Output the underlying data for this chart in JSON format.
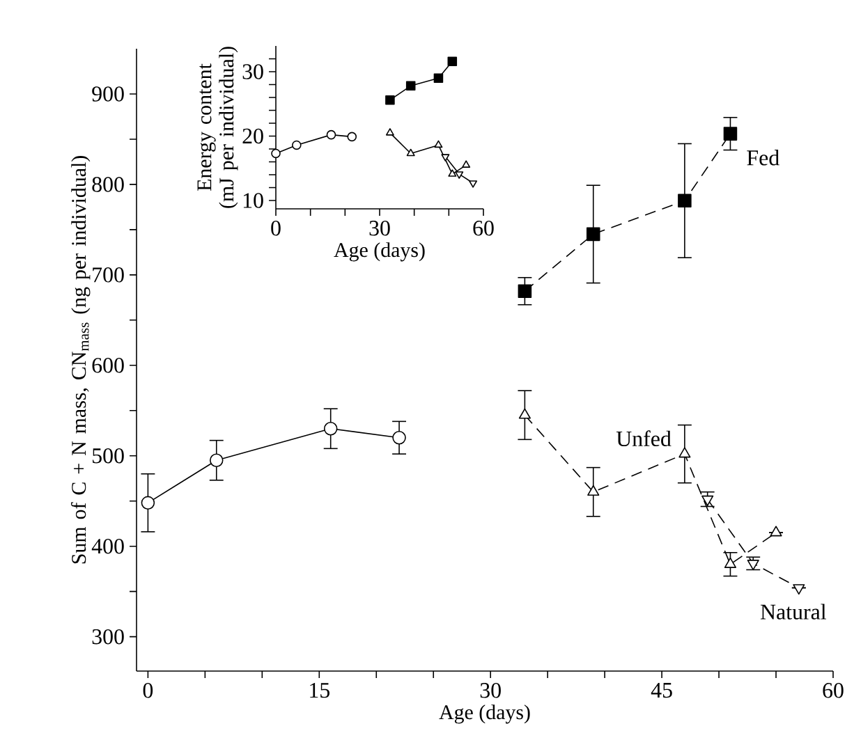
{
  "chart_data": [
    {
      "type": "line",
      "xlabel": "Age (days)",
      "ylabel": "Sum of C + N mass, CN$_{mass}$ (ng per individual)",
      "xlim": [
        -1,
        60
      ],
      "ylim": [
        262,
        950
      ],
      "xticks": [
        0,
        {
          "value": 5,
          "label": null
        },
        {
          "value": 10,
          "label": null
        },
        15,
        {
          "value": 20,
          "label": null
        },
        {
          "value": 25,
          "label": null
        },
        30,
        {
          "value": 35,
          "label": null
        },
        {
          "value": 40,
          "label": null
        },
        45,
        {
          "value": 50,
          "label": null
        },
        {
          "value": 55,
          "label": null
        },
        60
      ],
      "yticks": [
        300,
        {
          "value": 350,
          "label": null
        },
        400,
        {
          "value": 450,
          "label": null
        },
        500,
        {
          "value": 550,
          "label": null
        },
        600,
        {
          "value": 650,
          "label": null
        },
        700,
        {
          "value": 750,
          "label": null
        },
        800,
        {
          "value": 850,
          "label": null
        },
        900
      ],
      "grid": false,
      "series": [
        {
          "x": [
            0,
            6,
            16,
            22
          ],
          "values": [
            448,
            495,
            530,
            520
          ],
          "errors": [
            32,
            22,
            22,
            18
          ],
          "color": "#000000",
          "marker": "circle",
          "line_style": "solid"
        },
        {
          "name": "Fed",
          "x": [
            33,
            39,
            47,
            51
          ],
          "values": [
            682,
            745,
            782,
            856
          ],
          "errors": [
            15,
            54,
            63,
            18
          ],
          "color": "#000000",
          "marker": "square",
          "line_style": "dashed"
        },
        {
          "name": "Unfed",
          "x": [
            33,
            39,
            47,
            51,
            55
          ],
          "values": [
            545,
            460,
            502,
            380,
            415
          ],
          "errors": [
            27,
            27,
            32,
            13,
            null
          ],
          "color": "#000000",
          "marker": "triangle",
          "line_style": "dashed"
        },
        {
          "name": "Natural",
          "x": [
            49,
            53,
            57
          ],
          "values": [
            452,
            381,
            354
          ],
          "errors": [
            8,
            7,
            null
          ],
          "color": "#000000",
          "marker": "triangle down",
          "line_style": "dashed"
        }
      ]
    },
    {
      "type": "line",
      "xlabel": "Age (days)",
      "ylabel": "Energy content (mJ per individual)",
      "xlim": [
        0,
        60
      ],
      "ylim": [
        8.7,
        34
      ],
      "xticks": [
        0,
        {
          "value": 10,
          "label": null
        },
        {
          "value": 20,
          "label": null
        },
        30,
        {
          "value": 40,
          "label": null
        },
        {
          "value": 50,
          "label": null
        },
        60
      ],
      "yticks": [
        10,
        {
          "value": 12,
          "label": null
        },
        {
          "value": 14,
          "label": null
        },
        {
          "value": 16,
          "label": null
        },
        {
          "value": 18,
          "label": null
        },
        20,
        {
          "value": 22,
          "label": null
        },
        {
          "value": 24,
          "label": null
        },
        {
          "value": 26,
          "label": null
        },
        {
          "value": 28,
          "label": null
        },
        30,
        {
          "value": 32,
          "label": null
        }
      ],
      "grid": false,
      "series": [
        {
          "x": [
            0,
            6,
            16,
            22
          ],
          "values": [
            17.3,
            18.6,
            20.2,
            19.9
          ],
          "color": "#000000",
          "marker": "circle",
          "line_style": "solid"
        },
        {
          "x": [
            33,
            39,
            47,
            51
          ],
          "values": [
            25.6,
            27.8,
            29.0,
            31.6
          ],
          "color": "#000000",
          "marker": "square",
          "line_style": "solid"
        },
        {
          "x": [
            33,
            39,
            47,
            51,
            55
          ],
          "values": [
            20.5,
            17.3,
            18.6,
            14.1,
            15.5
          ],
          "color": "#000000",
          "marker": "triangle",
          "line_style": "solid"
        },
        {
          "x": [
            49,
            53,
            57
          ],
          "values": [
            16.8,
            14.1,
            12.7
          ],
          "color": "#000000",
          "marker": "triangle down",
          "line_style": "solid"
        }
      ]
    }
  ]
}
